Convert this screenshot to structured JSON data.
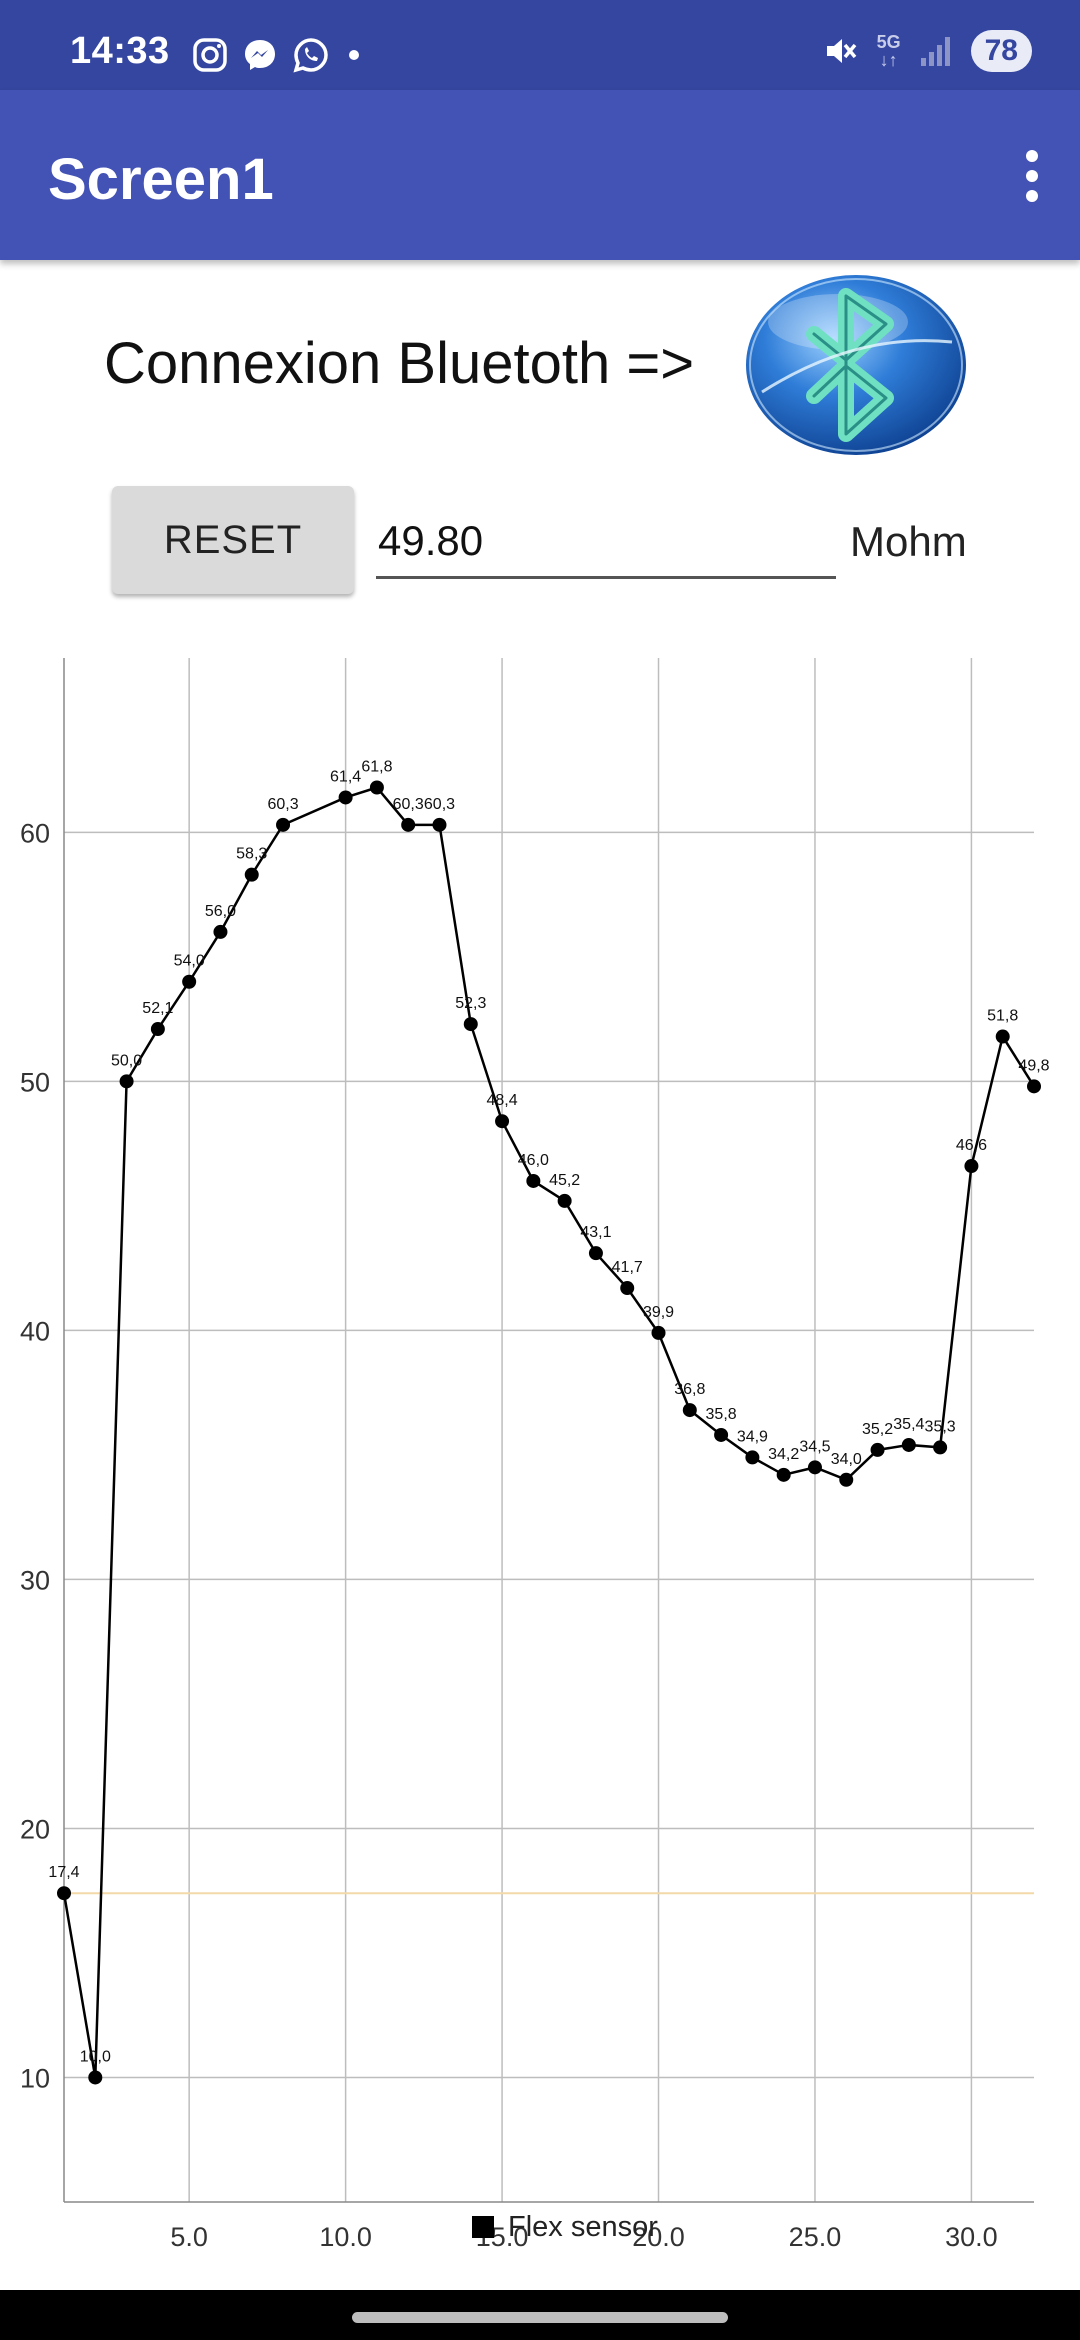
{
  "status_bar": {
    "time": "14:33",
    "network": "5G",
    "battery": "78",
    "icons": [
      "instagram-icon",
      "messenger-icon",
      "whatsapp-icon",
      "dot-icon",
      "mute-icon",
      "signal-icon"
    ]
  },
  "app_bar": {
    "title": "Screen1",
    "menu_icon": "overflow-menu-icon"
  },
  "main": {
    "bluetooth_label": "Connexion Bluetoth =>",
    "bluetooth_icon": "bluetooth-icon",
    "reset_label": "RESET",
    "value": "49.80",
    "unit": "Mohm"
  },
  "colors": {
    "status_bar": "#3546a0",
    "app_bar": "#4352b5",
    "line": "#000000",
    "threshold_line": "#f3d9a8",
    "grid": "#bdbdbd"
  },
  "chart_data": {
    "type": "line",
    "x": [
      1,
      2,
      3,
      4,
      5,
      6,
      7,
      8,
      10,
      11,
      12,
      13,
      14,
      15,
      16,
      17,
      18,
      19,
      20,
      21,
      22,
      23,
      24,
      25,
      26,
      27,
      28,
      29,
      30,
      31,
      32
    ],
    "series": [
      {
        "name": "Flex sensor",
        "values": [
          17.4,
          10.0,
          50.0,
          52.1,
          54.0,
          56.0,
          58.3,
          60.3,
          61.4,
          61.8,
          60.3,
          60.3,
          52.3,
          48.4,
          46.0,
          45.2,
          43.1,
          41.7,
          39.9,
          36.8,
          35.8,
          34.9,
          34.2,
          34.5,
          34.0,
          35.2,
          35.4,
          35.3,
          46.6,
          51.8,
          49.8
        ],
        "labels": [
          "17,4",
          "10,0",
          "50,0",
          "52,1",
          "54,0",
          "56,0",
          "58,3",
          "60,3",
          "61,4",
          "61,8",
          "60,3",
          "60,3",
          "52,3",
          "48,4",
          "46,0",
          "45,2",
          "43,1",
          "41,7",
          "39,9",
          "36,8",
          "35,8",
          "34,9",
          "34,2",
          "34,5",
          "34,0",
          "35,2",
          "35,4",
          "35,3",
          "46,6",
          "51,8",
          "49,8"
        ]
      }
    ],
    "xlim": [
      1,
      32
    ],
    "ylim": [
      5,
      67
    ],
    "x_ticks": [
      "5.0",
      "10.0",
      "15.0",
      "20.0",
      "25.0",
      "30.0"
    ],
    "x_tick_values": [
      5,
      10,
      15,
      20,
      25,
      30
    ],
    "y_ticks": [
      "10",
      "20",
      "30",
      "40",
      "50",
      "60"
    ],
    "y_tick_values": [
      10,
      20,
      30,
      40,
      50,
      60
    ],
    "threshold_value": 17.4,
    "grid": true,
    "legend": "bottom-center"
  }
}
